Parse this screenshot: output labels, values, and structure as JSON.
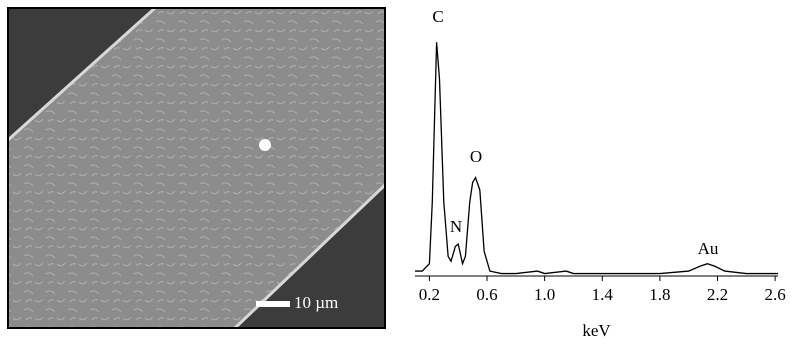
{
  "image": {
    "scale_label": "10 µm"
  },
  "chart_data": {
    "type": "line",
    "xlabel": "keV",
    "x": [
      0.1,
      0.15,
      0.2,
      0.22,
      0.25,
      0.27,
      0.3,
      0.33,
      0.35,
      0.38,
      0.4,
      0.43,
      0.45,
      0.48,
      0.5,
      0.52,
      0.55,
      0.58,
      0.62,
      0.7,
      0.8,
      0.95,
      1.0,
      1.15,
      1.2,
      1.5,
      1.8,
      2.0,
      2.08,
      2.13,
      2.18,
      2.25,
      2.4,
      2.62
    ],
    "series": [
      {
        "color": "#000000",
        "values": [
          2,
          2,
          5,
          30,
          95,
          80,
          30,
          8,
          6,
          12,
          13,
          5,
          8,
          30,
          38,
          40,
          35,
          10,
          2,
          1,
          1,
          2,
          1,
          2,
          1,
          1,
          1,
          2,
          4,
          5,
          4,
          2,
          1,
          1
        ]
      }
    ],
    "annotations": [
      "C",
      "N",
      "O",
      "Au"
    ],
    "xlim": [
      0.1,
      2.62
    ],
    "ylim": [
      0,
      100
    ],
    "xticks": [
      {
        "value": 0.2,
        "label": "0.2"
      },
      {
        "value": 0.6,
        "label": "0.6"
      },
      {
        "value": 1.0,
        "label": "1.0"
      },
      {
        "value": 1.4,
        "label": "1.4"
      },
      {
        "value": 1.8,
        "label": "1.8"
      },
      {
        "value": 2.2,
        "label": "2.2"
      },
      {
        "value": 2.6,
        "label": "2.6"
      }
    ],
    "grid": false
  }
}
